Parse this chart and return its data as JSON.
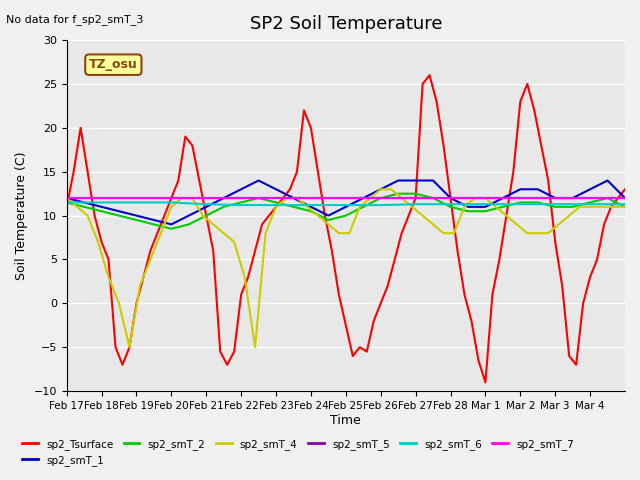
{
  "title": "SP2 Soil Temperature",
  "ylabel": "Soil Temperature (C)",
  "xlabel": "Time",
  "no_data_text": "No data for f_sp2_smT_3",
  "tz_label": "TZ_osu",
  "ylim": [
    -10,
    30
  ],
  "background_color": "#e8e8e8",
  "x_tick_labels": [
    "Feb 17",
    "Feb 18",
    "Feb 19",
    "Feb 20",
    "Feb 21",
    "Feb 22",
    "Feb 23",
    "Feb 24",
    "Feb 25",
    "Feb 26",
    "Feb 27",
    "Feb 28",
    "Mar 1",
    "Mar 2",
    "Mar 3",
    "Mar 4"
  ],
  "legend_entries": [
    {
      "label": "sp2_Tsurface",
      "color": "#ff0000"
    },
    {
      "label": "sp2_smT_1",
      "color": "#0000cc"
    },
    {
      "label": "sp2_smT_2",
      "color": "#00cc00"
    },
    {
      "label": "sp2_smT_4",
      "color": "#cccc00"
    },
    {
      "label": "sp2_smT_5",
      "color": "#8800aa"
    },
    {
      "label": "sp2_smT_6",
      "color": "#00cccc"
    },
    {
      "label": "sp2_smT_7",
      "color": "#ff00ff"
    }
  ],
  "series": {
    "sp2_Tsurface": {
      "color": "#ff0000",
      "lw": 1.5,
      "data_x": [
        0,
        0.2,
        0.4,
        0.6,
        0.8,
        1.0,
        1.2,
        1.4,
        1.6,
        1.8,
        2.0,
        2.2,
        2.4,
        2.6,
        2.8,
        3.0,
        3.2,
        3.4,
        3.6,
        3.8,
        4.0,
        4.2,
        4.4,
        4.6,
        4.8,
        5.0,
        5.2,
        5.4,
        5.6,
        5.8,
        6.0,
        6.2,
        6.4,
        6.6,
        6.8,
        7.0,
        7.2,
        7.4,
        7.6,
        7.8,
        8.0,
        8.2,
        8.4,
        8.6,
        8.8,
        9.0,
        9.2,
        9.4,
        9.6,
        9.8,
        10.0,
        10.2,
        10.4,
        10.6,
        10.8,
        11.0,
        11.2,
        11.4,
        11.6,
        11.8,
        12.0,
        12.2,
        12.4,
        12.6,
        12.8,
        13.0,
        13.2,
        13.4,
        13.6,
        13.8,
        14.0,
        14.2,
        14.4,
        14.6,
        14.8,
        15.0,
        15.2,
        15.4,
        15.6,
        15.8,
        16.0
      ],
      "data_y": [
        11,
        15,
        20,
        15,
        10,
        7,
        5,
        -5,
        -7,
        -5,
        0,
        3,
        6,
        8,
        10,
        12,
        14,
        19,
        18,
        14,
        10,
        6,
        -5.5,
        -7,
        -5.5,
        1,
        3,
        6,
        9,
        10,
        11,
        12,
        13,
        15,
        22,
        20,
        15,
        10,
        6,
        1,
        -2.5,
        -6,
        -5,
        -5.5,
        -2,
        0,
        2,
        5,
        8,
        10,
        12,
        25,
        26,
        23,
        18,
        12,
        6,
        1,
        -2,
        -6.5,
        -9,
        1,
        5,
        10,
        15,
        23,
        25,
        22,
        18,
        14,
        7,
        2,
        -6,
        -7,
        0,
        3,
        5,
        9,
        11,
        12,
        13
      ]
    },
    "sp2_smT_1": {
      "color": "#0000cc",
      "lw": 1.5,
      "data_x": [
        0,
        0.5,
        1.0,
        1.5,
        2.0,
        2.5,
        3.0,
        3.5,
        4.0,
        4.5,
        5.0,
        5.5,
        6.0,
        6.5,
        7.0,
        7.5,
        8.0,
        8.5,
        9.0,
        9.5,
        10.0,
        10.5,
        11.0,
        11.5,
        12.0,
        12.5,
        13.0,
        13.5,
        14.0,
        14.5,
        15.0,
        15.5,
        16.0
      ],
      "data_y": [
        12,
        11.5,
        11,
        10.5,
        10,
        9.5,
        9,
        10,
        11,
        12,
        13,
        14,
        13,
        12,
        11,
        10,
        11,
        12,
        13,
        14,
        14,
        14,
        12,
        11,
        11,
        12,
        13,
        13,
        12,
        12,
        13,
        14,
        12
      ]
    },
    "sp2_smT_2": {
      "color": "#00cc00",
      "lw": 1.5,
      "data_x": [
        0,
        0.5,
        1.0,
        1.5,
        2.0,
        2.5,
        3.0,
        3.5,
        4.0,
        4.5,
        5.0,
        5.5,
        6.0,
        6.5,
        7.0,
        7.5,
        8.0,
        8.5,
        9.0,
        9.5,
        10.0,
        10.5,
        11.0,
        11.5,
        12.0,
        12.5,
        13.0,
        13.5,
        14.0,
        14.5,
        15.0,
        15.5,
        16.0
      ],
      "data_y": [
        11.5,
        11,
        10.5,
        10,
        9.5,
        9,
        8.5,
        9,
        10,
        11,
        11.5,
        12,
        11.5,
        11,
        10.5,
        9.5,
        10,
        11,
        12,
        12.5,
        12.5,
        12,
        11,
        10.5,
        10.5,
        11,
        11.5,
        11.5,
        11,
        11,
        11.5,
        12,
        11
      ]
    },
    "sp2_smT_4": {
      "color": "#cccc00",
      "lw": 1.5,
      "data_x": [
        0,
        0.3,
        0.6,
        0.9,
        1.2,
        1.5,
        1.8,
        2.1,
        2.4,
        2.7,
        3.0,
        3.3,
        3.6,
        3.9,
        4.2,
        4.5,
        4.8,
        5.1,
        5.4,
        5.7,
        6.0,
        6.3,
        6.6,
        6.9,
        7.2,
        7.5,
        7.8,
        8.1,
        8.4,
        8.7,
        9.0,
        9.3,
        9.6,
        9.9,
        10.2,
        10.5,
        10.8,
        11.1,
        11.4,
        11.7,
        12.0,
        12.3,
        12.6,
        12.9,
        13.2,
        13.5,
        13.8,
        14.1,
        14.4,
        14.7,
        15.0,
        15.3,
        15.6,
        15.9,
        16.0
      ],
      "data_y": [
        12,
        11,
        10,
        7,
        3,
        0,
        -5,
        2,
        5,
        8,
        11,
        12,
        12,
        10,
        9,
        8,
        7,
        3,
        -5,
        8,
        11,
        12,
        12,
        11,
        10,
        9,
        8,
        8,
        11,
        12,
        13,
        13,
        12,
        11,
        10,
        9,
        8,
        8,
        11,
        12,
        12,
        11,
        10,
        9,
        8,
        8,
        8,
        9,
        10,
        11,
        11,
        11,
        11,
        11,
        11
      ]
    },
    "sp2_smT_5": {
      "color": "#8800aa",
      "lw": 1.5,
      "data_x": [
        0,
        1,
        2,
        3,
        4,
        5,
        6,
        7,
        8,
        9,
        10,
        11,
        12,
        13,
        14,
        15,
        16
      ],
      "data_y": [
        12,
        12,
        12,
        12,
        12,
        12,
        12,
        12,
        12,
        12,
        12,
        12,
        12,
        12,
        12,
        12,
        12
      ]
    },
    "sp2_smT_6": {
      "color": "#00cccc",
      "lw": 1.5,
      "data_x": [
        0,
        1,
        2,
        3,
        4,
        5,
        6,
        7,
        8,
        9,
        10,
        11,
        12,
        13,
        14,
        15,
        16
      ],
      "data_y": [
        11.5,
        11.5,
        11.5,
        11.5,
        11.3,
        11.2,
        11.2,
        11.2,
        11.2,
        11.2,
        11.3,
        11.3,
        11.3,
        11.3,
        11.3,
        11.3,
        11.3
      ]
    },
    "sp2_smT_7": {
      "color": "#ff00ff",
      "lw": 1.5,
      "data_x": [
        0,
        1,
        2,
        3,
        4,
        5,
        6,
        7,
        8,
        9,
        10,
        11,
        12,
        13,
        14,
        15,
        16
      ],
      "data_y": [
        12,
        12,
        12,
        12,
        12,
        12,
        12,
        12,
        12,
        12,
        12,
        12,
        12,
        12,
        12,
        12,
        12
      ]
    }
  }
}
